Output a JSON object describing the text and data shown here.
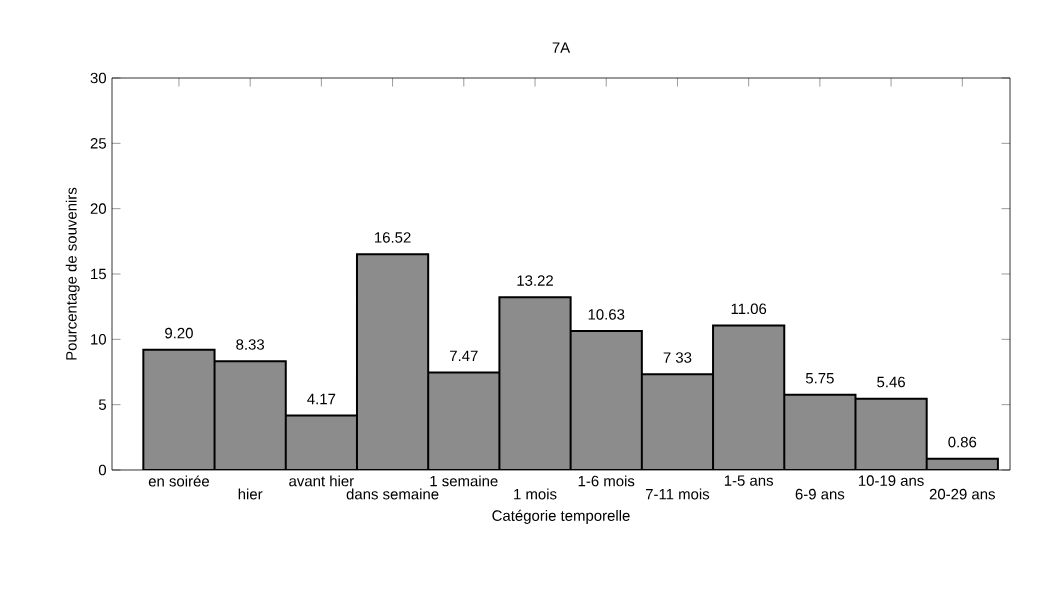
{
  "chart_data": {
    "type": "bar",
    "title": "7A",
    "xlabel": "Catégorie temporelle",
    "ylabel": "Pourcentage de souvenirs",
    "categories": [
      "en soirée",
      "hier",
      "avant hier",
      "dans semaine",
      "1 semaine",
      "1 mois",
      "1-6 mois",
      "7-11 mois",
      "1-5 ans",
      "6-9 ans",
      "10-19 ans",
      "20-29 ans"
    ],
    "values": [
      9.2,
      8.33,
      4.17,
      16.52,
      7.47,
      13.22,
      10.63,
      7.33,
      11.06,
      5.75,
      5.46,
      0.86
    ],
    "value_labels": [
      "9.20",
      "8.33",
      "4.17",
      "16.52",
      "7.47",
      "13.22",
      "10.63",
      "7 33",
      "11.06",
      "5.75",
      "5.46",
      "0.86"
    ],
    "color": "#8c8c8c",
    "ylim": [
      0,
      30
    ],
    "yticks": [
      0,
      5,
      10,
      15,
      20,
      25,
      30
    ],
    "grid": false
  }
}
